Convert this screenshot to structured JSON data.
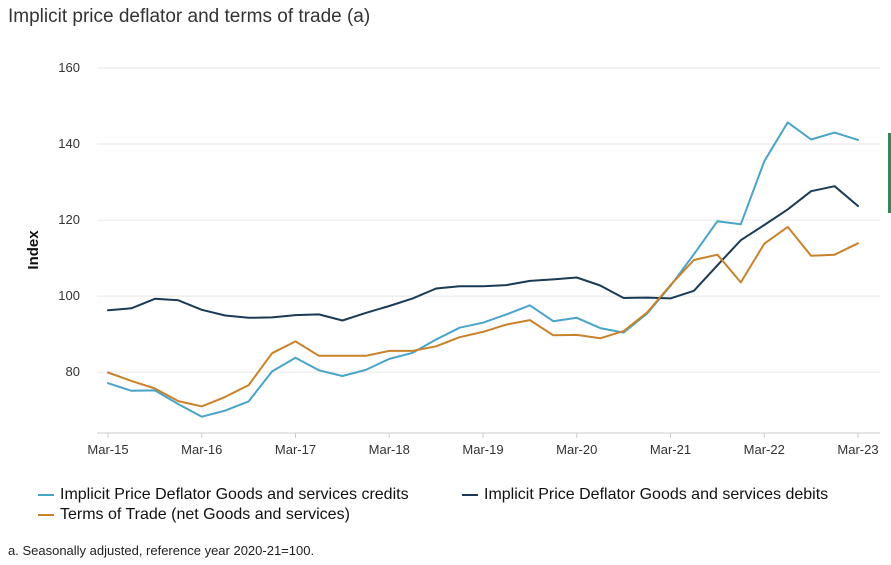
{
  "chart_data": {
    "type": "line",
    "title": "Implicit price deflator and terms of trade (a)",
    "ylabel": "Index",
    "xlabel": "",
    "ylim": [
      64,
      160
    ],
    "yticks": [
      80,
      100,
      120,
      140,
      160
    ],
    "x": [
      "Mar-15",
      "Jun-15",
      "Sep-15",
      "Dec-15",
      "Mar-16",
      "Jun-16",
      "Sep-16",
      "Dec-16",
      "Mar-17",
      "Jun-17",
      "Sep-17",
      "Dec-17",
      "Mar-18",
      "Jun-18",
      "Sep-18",
      "Dec-18",
      "Mar-19",
      "Jun-19",
      "Sep-19",
      "Dec-19",
      "Mar-20",
      "Jun-20",
      "Sep-20",
      "Dec-20",
      "Mar-21",
      "Jun-21",
      "Sep-21",
      "Dec-21",
      "Mar-22",
      "Jun-22",
      "Sep-22",
      "Dec-22",
      "Mar-23"
    ],
    "xtick_labels": [
      "Mar-15",
      "Mar-16",
      "Mar-17",
      "Mar-18",
      "Mar-19",
      "Mar-20",
      "Mar-21",
      "Mar-22",
      "Mar-23"
    ],
    "xtick_indices": [
      0,
      4,
      8,
      12,
      16,
      20,
      24,
      28,
      32
    ],
    "series": [
      {
        "name": "Implicit Price Deflator Goods and services credits",
        "color": "#4aa3c8",
        "values": [
          77.1,
          75.1,
          75.2,
          71.6,
          68.3,
          69.9,
          72.3,
          80.2,
          83.8,
          80.5,
          79.0,
          80.6,
          83.5,
          85.1,
          88.6,
          91.7,
          93.0,
          95.2,
          97.6,
          93.4,
          94.3,
          91.6,
          90.4,
          95.4,
          102.7,
          111.0,
          119.7,
          118.9,
          135.5,
          145.7,
          141.2,
          143.0,
          141.1
        ]
      },
      {
        "name": "Implicit Price Deflator Goods and services debits",
        "color": "#1b3a55",
        "values": [
          96.3,
          96.8,
          99.3,
          98.9,
          96.4,
          94.9,
          94.3,
          94.4,
          95.0,
          95.2,
          93.6,
          95.6,
          97.4,
          99.4,
          102.0,
          102.6,
          102.6,
          102.9,
          104.0,
          104.4,
          104.9,
          102.8,
          99.5,
          99.6,
          99.4,
          101.4,
          108.1,
          114.7,
          118.7,
          122.8,
          127.6,
          128.9,
          123.7
        ]
      },
      {
        "name": "Terms of Trade (net Goods and services)",
        "color": "#c9822b",
        "values": [
          79.9,
          77.7,
          75.7,
          72.4,
          71.0,
          73.5,
          76.6,
          85.0,
          88.1,
          84.3,
          84.3,
          84.3,
          85.6,
          85.6,
          86.8,
          89.2,
          90.6,
          92.5,
          93.7,
          89.7,
          89.8,
          88.9,
          90.8,
          95.7,
          102.9,
          109.5,
          110.9,
          103.6,
          113.8,
          118.2,
          110.6,
          110.9,
          113.9
        ]
      }
    ],
    "legend_position": "bottom",
    "grid": "horizontal"
  },
  "footnote": "a. Seasonally adjusted, reference year 2020-21=100."
}
